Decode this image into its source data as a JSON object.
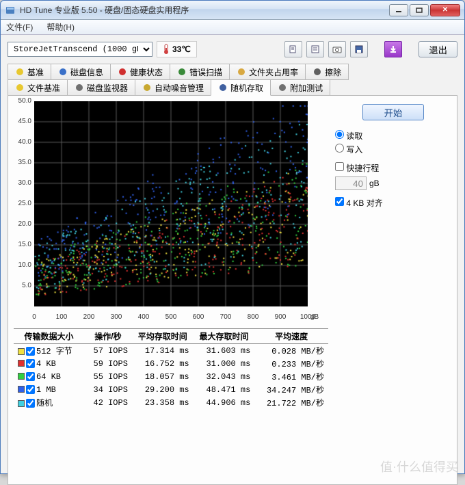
{
  "window": {
    "title": "HD Tune 专业版 5.50 - 硬盘/固态硬盘实用程序",
    "icon_color": "#4a80c0"
  },
  "menus": [
    "文件(F)",
    "帮助(H)"
  ],
  "toolbar": {
    "drive": "StoreJetTranscend (1000 gB)",
    "temp": "33℃",
    "exit_label": "退出"
  },
  "tabs_row1": [
    {
      "label": "基准",
      "icon": "bulb",
      "color": "#e8c830"
    },
    {
      "label": "磁盘信息",
      "icon": "info",
      "color": "#3a70c8"
    },
    {
      "label": "健康状态",
      "icon": "plus",
      "color": "#d03030"
    },
    {
      "label": "错误扫描",
      "icon": "search",
      "color": "#3a8a3a"
    },
    {
      "label": "文件夹占用率",
      "icon": "folder",
      "color": "#d8a840"
    },
    {
      "label": "擦除",
      "icon": "trash",
      "color": "#606060"
    }
  ],
  "tabs_row2": [
    {
      "label": "文件基准",
      "icon": "bulb",
      "color": "#e8c830"
    },
    {
      "label": "磁盘监视器",
      "icon": "disk",
      "color": "#707070"
    },
    {
      "label": "自动噪音管理",
      "icon": "sound",
      "color": "#c8a830"
    },
    {
      "label": "随机存取",
      "icon": "random",
      "color": "#4060a0",
      "active": true
    },
    {
      "label": "附加测试",
      "icon": "copy",
      "color": "#707070"
    }
  ],
  "controls": {
    "start": "开始",
    "read": "读取",
    "write": "写入",
    "quick": "快捷行程",
    "size_value": "40",
    "size_unit": "gB",
    "align": "4 KB 对齐"
  },
  "chart": {
    "type": "scatter",
    "bg": "#000000",
    "grid": "#5a5a5a",
    "ylim": [
      0,
      50
    ],
    "ytick_step": 5,
    "xlim": [
      0,
      1000
    ],
    "xtick_step": 100,
    "xunit": "gB",
    "yunit": "ms",
    "series": [
      {
        "name": "512",
        "color": "#f0e040",
        "mean": 17.3,
        "spread": 8,
        "n": 260
      },
      {
        "name": "4k",
        "color": "#e03030",
        "mean": 16.8,
        "spread": 8,
        "n": 260
      },
      {
        "name": "64k",
        "color": "#30d040",
        "mean": 18.1,
        "spread": 9,
        "n": 260
      },
      {
        "name": "1m",
        "color": "#3060e8",
        "mean": 29.2,
        "spread": 10,
        "n": 260
      },
      {
        "name": "rand",
        "color": "#40d0e0",
        "mean": 23.4,
        "spread": 11,
        "n": 260
      }
    ]
  },
  "results": {
    "headers": [
      "传输数据大小",
      "操作/秒",
      "平均存取时间",
      "最大存取时间",
      "平均速度"
    ],
    "rows": [
      {
        "color": "#f0e040",
        "label": "512 字节",
        "iops": "57 IOPS",
        "avg": "17.314 ms",
        "max": "31.603 ms",
        "rate": "0.028 MB/秒"
      },
      {
        "color": "#e03030",
        "label": "4 KB",
        "iops": "59 IOPS",
        "avg": "16.752 ms",
        "max": "31.000 ms",
        "rate": "0.233 MB/秒"
      },
      {
        "color": "#30d040",
        "label": "64 KB",
        "iops": "55 IOPS",
        "avg": "18.057 ms",
        "max": "32.043 ms",
        "rate": "3.461 MB/秒"
      },
      {
        "color": "#3060e8",
        "label": "1 MB",
        "iops": "34 IOPS",
        "avg": "29.200 ms",
        "max": "48.471 ms",
        "rate": "34.247 MB/秒"
      },
      {
        "color": "#40d0e0",
        "label": "随机",
        "iops": "42 IOPS",
        "avg": "23.358 ms",
        "max": "44.906 ms",
        "rate": "21.722 MB/秒"
      }
    ]
  },
  "watermark": "值·什么值得买"
}
